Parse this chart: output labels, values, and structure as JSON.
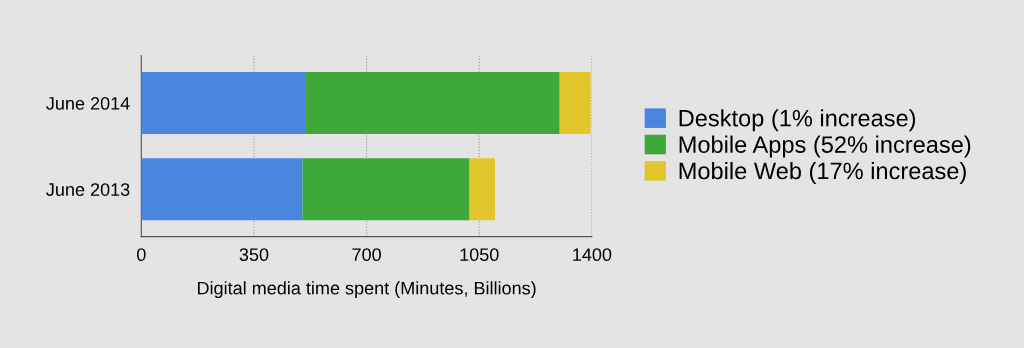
{
  "chart_data": {
    "type": "bar",
    "orientation": "horizontal",
    "stacked": true,
    "xlabel": "Digital media time spent (Minutes, Billions)",
    "categories": [
      "June 2014",
      "June 2013"
    ],
    "series": [
      {
        "name": "Desktop (1% increase)",
        "color": "#4a86e0",
        "values": [
          512,
          501
        ]
      },
      {
        "name": "Mobile Apps (52% increase)",
        "color": "#3fa83a",
        "values": [
          788,
          519
        ]
      },
      {
        "name": "Mobile Web (17% increase)",
        "color": "#e3c52c",
        "values": [
          96,
          79
        ]
      }
    ],
    "xlim": [
      0,
      1400
    ],
    "xticks": [
      0,
      350,
      700,
      1050,
      1400
    ],
    "grid": "x",
    "legend": "right"
  }
}
